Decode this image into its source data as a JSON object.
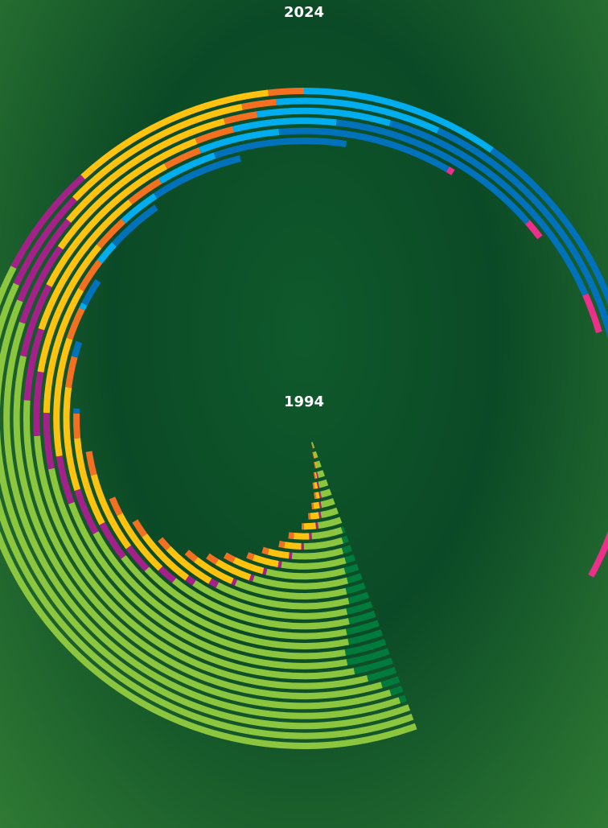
{
  "chart_data": {
    "type": "spiral-stacked-bar",
    "title": "",
    "start_label": "1994",
    "end_label": "2024",
    "series": [
      {
        "key": "s1",
        "color": "#007a3d"
      },
      {
        "key": "s2",
        "color": "#8cc63f"
      },
      {
        "key": "s3",
        "color": "#a4218a"
      },
      {
        "key": "s4",
        "color": "#ffc20e"
      },
      {
        "key": "s5",
        "color": "#f37021"
      },
      {
        "key": "s6",
        "color": "#00aeef"
      },
      {
        "key": "s7",
        "color": "#0072bc"
      },
      {
        "key": "s8",
        "color": "#ec2f8b"
      }
    ],
    "years": [
      {
        "year": "1994",
        "values": [
          0,
          2,
          0,
          0,
          1,
          0,
          0,
          0
        ]
      },
      {
        "year": "1995",
        "values": [
          0,
          3,
          0,
          1,
          1,
          0,
          0,
          0
        ]
      },
      {
        "year": "1996",
        "values": [
          0,
          4,
          0,
          1,
          1,
          0,
          0,
          0
        ]
      },
      {
        "year": "1997",
        "values": [
          0,
          5,
          1,
          1,
          1,
          0,
          0,
          0
        ]
      },
      {
        "year": "1998",
        "values": [
          0,
          6,
          1,
          2,
          1,
          0,
          0,
          0
        ]
      },
      {
        "year": "1999",
        "values": [
          0,
          6,
          1,
          2,
          1,
          0,
          0,
          0
        ]
      },
      {
        "year": "2000",
        "values": [
          0,
          7,
          1,
          3,
          1,
          0,
          0,
          0
        ]
      },
      {
        "year": "2001",
        "values": [
          0,
          8,
          1,
          4,
          1,
          0,
          0,
          0
        ]
      },
      {
        "year": "2002",
        "values": [
          0,
          10,
          1,
          5,
          1,
          0,
          0,
          0
        ]
      },
      {
        "year": "2003",
        "values": [
          1,
          12,
          1,
          6,
          2,
          0,
          0,
          0
        ]
      },
      {
        "year": "2004",
        "values": [
          2,
          14,
          1,
          6,
          2,
          0,
          0,
          0
        ]
      },
      {
        "year": "2005",
        "values": [
          3,
          17,
          1,
          7,
          2,
          0,
          0,
          0
        ]
      },
      {
        "year": "2006",
        "values": [
          3,
          20,
          1,
          8,
          2,
          0,
          0,
          0
        ]
      },
      {
        "year": "2007",
        "values": [
          4,
          23,
          1,
          9,
          3,
          0,
          0,
          0
        ]
      },
      {
        "year": "2008",
        "values": [
          4,
          26,
          1,
          10,
          3,
          0,
          0,
          0
        ]
      },
      {
        "year": "2009",
        "values": [
          5,
          29,
          1,
          11,
          3,
          0,
          0,
          0
        ]
      },
      {
        "year": "2010",
        "values": [
          5,
          33,
          2,
          13,
          3,
          0,
          0,
          0
        ]
      },
      {
        "year": "2011",
        "values": [
          6,
          37,
          2,
          14,
          4,
          0,
          0,
          0
        ]
      },
      {
        "year": "2012",
        "values": [
          6,
          41,
          4,
          15,
          4,
          0,
          0,
          0
        ]
      },
      {
        "year": "2013",
        "values": [
          7,
          46,
          6,
          17,
          5,
          0,
          0,
          0
        ]
      },
      {
        "year": "2014",
        "values": [
          7,
          51,
          8,
          18,
          5,
          0,
          1,
          0
        ]
      },
      {
        "year": "2015",
        "values": [
          8,
          57,
          9,
          20,
          6,
          0,
          3,
          0
        ]
      },
      {
        "year": "2016",
        "values": [
          8,
          64,
          9,
          22,
          6,
          1,
          5,
          0
        ]
      },
      {
        "year": "2017",
        "values": [
          7,
          72,
          10,
          23,
          6,
          4,
          10,
          0
        ]
      },
      {
        "year": "2018",
        "values": [
          5,
          80,
          11,
          24,
          6,
          7,
          16,
          0
        ]
      },
      {
        "year": "2019",
        "values": [
          3,
          88,
          12,
          26,
          6,
          10,
          22,
          0
        ]
      },
      {
        "year": "2020",
        "values": [
          2,
          96,
          12,
          27,
          6,
          13,
          28,
          1
        ]
      },
      {
        "year": "2021",
        "values": [
          1,
          102,
          13,
          27,
          6,
          16,
          34,
          3
        ]
      },
      {
        "year": "2022",
        "values": [
          0,
          106,
          14,
          28,
          5,
          20,
          40,
          6
        ]
      },
      {
        "year": "2023",
        "values": [
          0,
          108,
          15,
          28,
          5,
          24,
          46,
          10
        ]
      },
      {
        "year": "2024",
        "values": [
          0,
          110,
          16,
          29,
          5,
          28,
          52,
          15
        ]
      }
    ]
  }
}
